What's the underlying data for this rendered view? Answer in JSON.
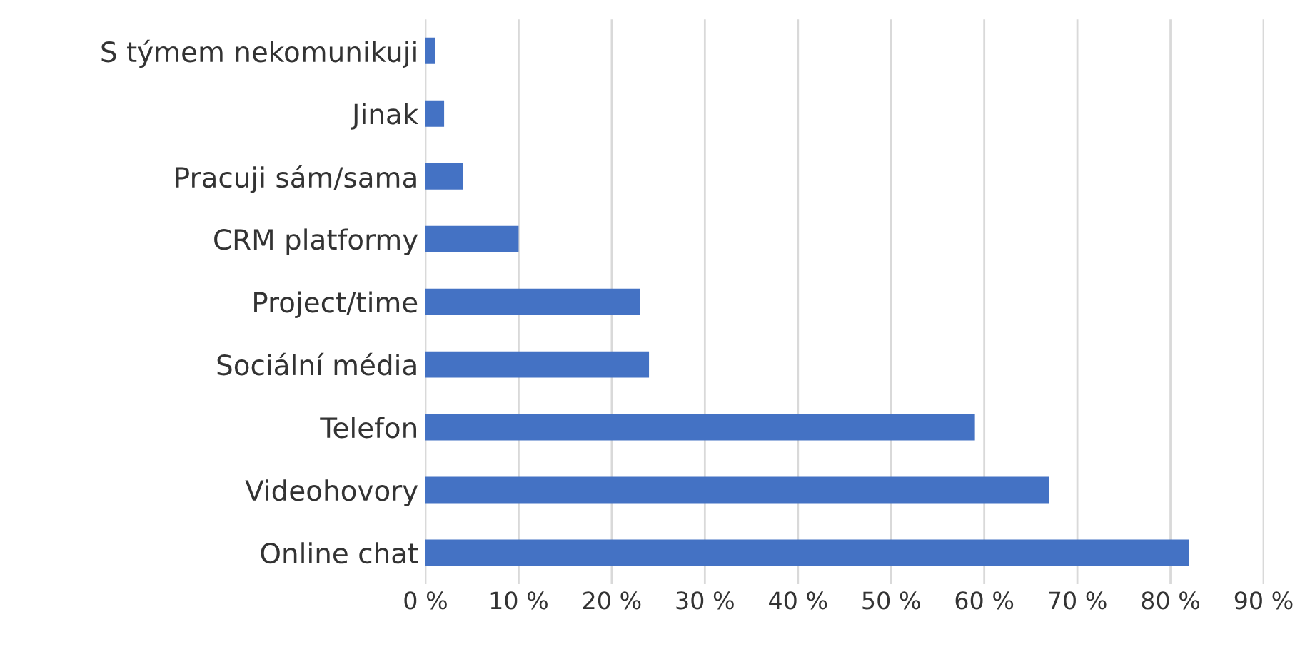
{
  "chart_data": {
    "type": "bar",
    "orientation": "horizontal",
    "categories": [
      "S týmem nekomunikuji",
      "Jinak",
      "Pracuji sám/sama",
      "CRM platformy",
      "Project/time",
      "Sociální média",
      "Telefon",
      "Videohovory",
      "Online chat"
    ],
    "values": [
      1,
      2,
      4,
      10,
      23,
      24,
      59,
      67,
      82
    ],
    "color": "#4472c4",
    "xlim": [
      0,
      90
    ],
    "xticks": [
      {
        "value": 0,
        "label": "0 %"
      },
      {
        "value": 10,
        "label": "10 %"
      },
      {
        "value": 20,
        "label": "20 %"
      },
      {
        "value": 30,
        "label": "30 %"
      },
      {
        "value": 40,
        "label": "40 %"
      },
      {
        "value": 50,
        "label": "50 %"
      },
      {
        "value": 60,
        "label": "60 %"
      },
      {
        "value": 70,
        "label": "70 %"
      },
      {
        "value": 80,
        "label": "80 %"
      },
      {
        "value": 90,
        "label": "90 %"
      }
    ],
    "grid": "x",
    "legend": false
  }
}
